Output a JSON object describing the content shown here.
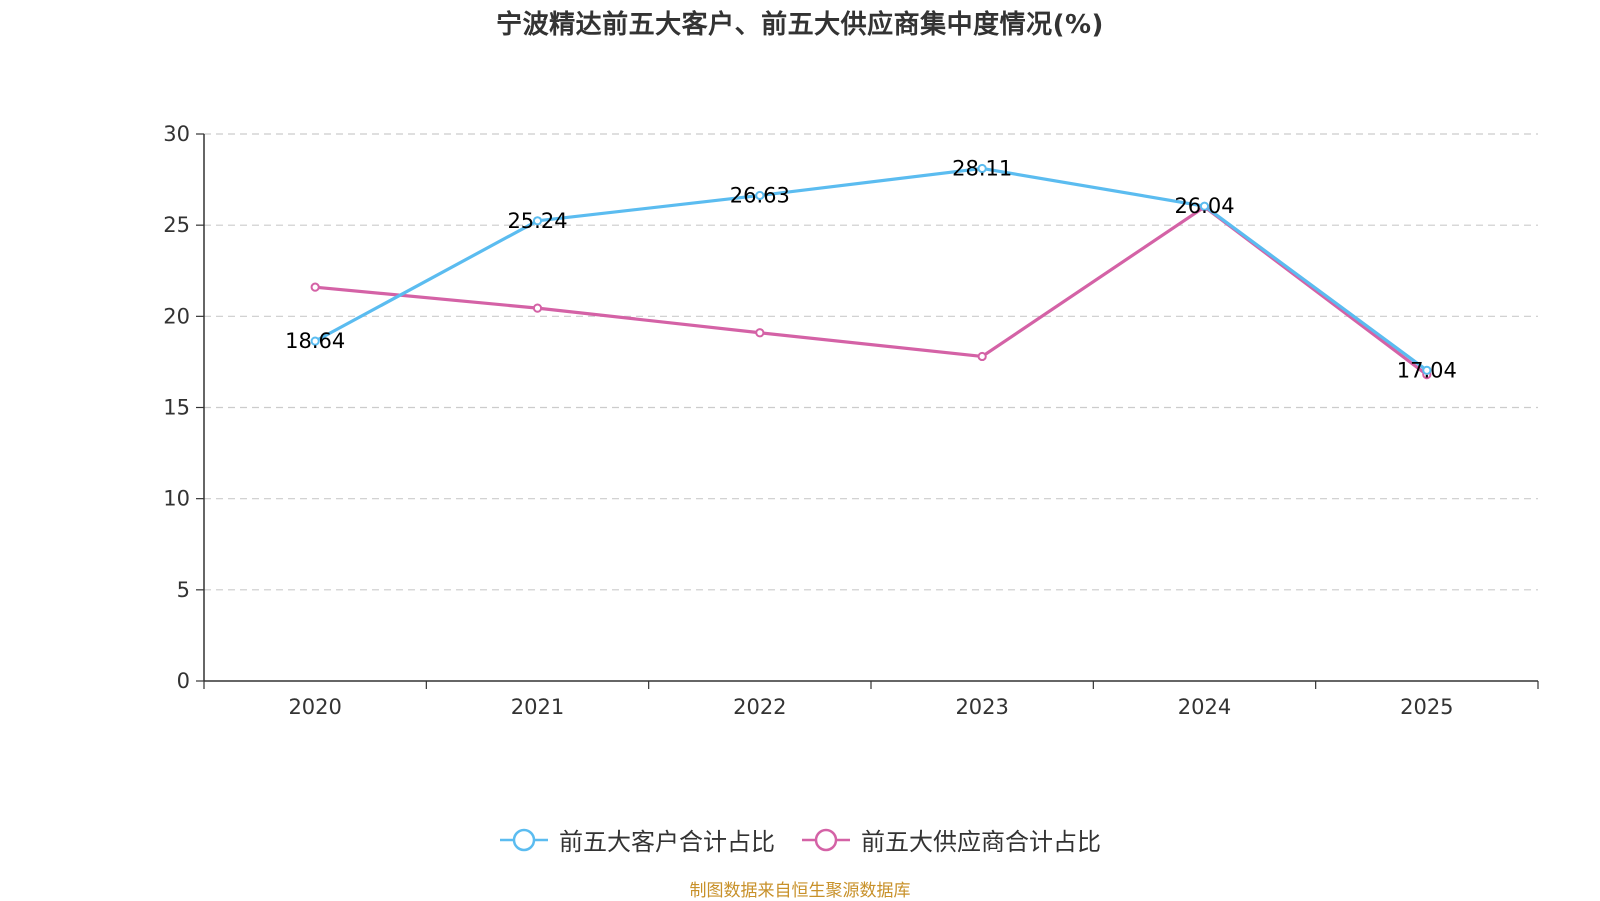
{
  "chart_data": {
    "type": "line",
    "title": "宁波精达前五大客户、前五大供应商集中度情况(%)",
    "categories": [
      "2020",
      "2021",
      "2022",
      "2023",
      "2024",
      "2025"
    ],
    "y_ticks": [
      "0",
      "5",
      "10",
      "15",
      "20",
      "25",
      "30"
    ],
    "ylim": [
      0,
      30
    ],
    "grid": true,
    "legend_position": "bottom",
    "xlabel": "",
    "ylabel": "",
    "series": [
      {
        "name": "前五大客户合计占比",
        "values": [
          18.64,
          25.24,
          26.63,
          28.11,
          26.04,
          17.04
        ],
        "labels": [
          "18.64",
          "25.24",
          "26.63",
          "28.11",
          "26.04",
          "17.04"
        ],
        "color": "#5bbcf0"
      },
      {
        "name": "前五大供应商合计占比",
        "values": [
          21.6,
          20.45,
          19.1,
          17.8,
          26.0,
          16.8
        ],
        "color": "#d462a6"
      }
    ]
  },
  "source": {
    "text": "制图数据来自恒生聚源数据库",
    "color": "#c8912a"
  }
}
